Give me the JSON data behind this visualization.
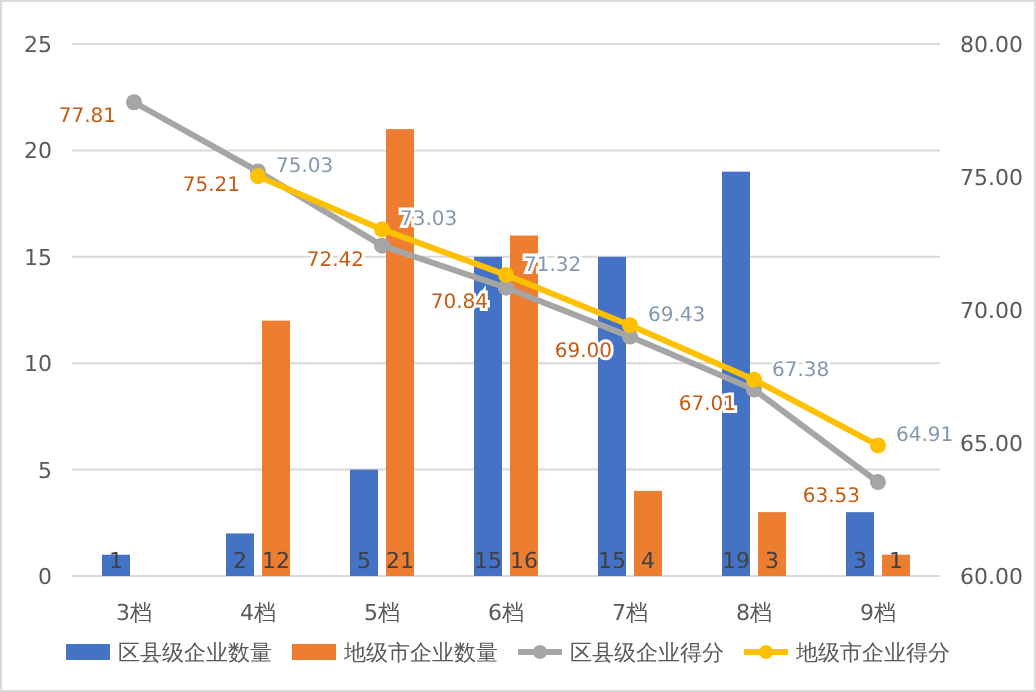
{
  "chart_data": {
    "type": "bar",
    "categories": [
      "3档",
      "4档",
      "5档",
      "6档",
      "7档",
      "8档",
      "9档"
    ],
    "series": [
      {
        "name": "区县级企业数量",
        "color": "#4472c4",
        "values": [
          1,
          2,
          5,
          15,
          15,
          19,
          3
        ]
      },
      {
        "name": "地级市企业数量",
        "color": "#ed7d31",
        "values": [
          null,
          12,
          21,
          16,
          4,
          3,
          1
        ]
      },
      {
        "name": "区县级企业得分",
        "type": "line",
        "axis": "y2",
        "color": "#a5a5a5",
        "values": [
          77.81,
          75.21,
          72.42,
          70.84,
          69.0,
          67.01,
          63.53
        ],
        "value_labels": [
          "77.81",
          "75.21",
          "72.42",
          "70.84",
          "69.00",
          "67.01",
          "63.53"
        ]
      },
      {
        "name": "地级市企业得分",
        "type": "line",
        "axis": "y2",
        "color": "#ffc000",
        "values": [
          null,
          75.03,
          73.03,
          71.32,
          69.43,
          67.38,
          64.91
        ],
        "value_labels": [
          null,
          "75.03",
          "73.03",
          "71.32",
          "69.43",
          "67.38",
          "64.91"
        ]
      }
    ],
    "ylim": [
      0,
      25
    ],
    "yticks": [
      0,
      5,
      10,
      15,
      20,
      25
    ],
    "y2lim": [
      60,
      80
    ],
    "y2ticks": [
      {
        "value": 60,
        "label": "60.00"
      },
      {
        "value": 65,
        "label": "65.00"
      },
      {
        "value": 70,
        "label": "70.00"
      },
      {
        "value": 75,
        "label": "75.00"
      },
      {
        "value": 80,
        "label": "80.00"
      }
    ],
    "grid": "y",
    "legend": "bottom",
    "data_labels": true,
    "marker": "circle",
    "line_style": "solid"
  }
}
